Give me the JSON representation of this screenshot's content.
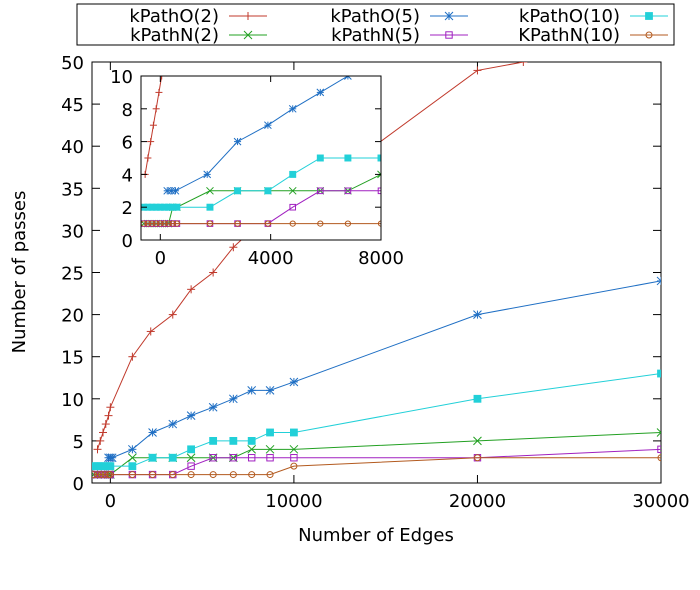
{
  "chart_data": [
    {
      "type": "line",
      "title": "",
      "xlabel": "Number of Edges",
      "ylabel": "Number of passes",
      "xlim": [
        -1000,
        30000
      ],
      "ylim": [
        0,
        50
      ],
      "xticks": [
        0,
        10000,
        20000,
        30000
      ],
      "yticks": [
        0,
        5,
        10,
        15,
        20,
        25,
        30,
        35,
        40,
        45,
        50
      ],
      "grid": false,
      "legend_position": "top, outside plot (3 columns)",
      "series": [
        {
          "name": "kPathO(2)",
          "color": "#c0392b",
          "marker": "plus",
          "x": [
            -700,
            -550,
            -400,
            -250,
            -100,
            0,
            1200,
            2200,
            3400,
            4400,
            5600,
            6700,
            7700,
            8700,
            10000,
            20000,
            22500
          ],
          "y": [
            4,
            5,
            6,
            7,
            8,
            9,
            15,
            18,
            20,
            23,
            25,
            28,
            30,
            31,
            33,
            49,
            50
          ]
        },
        {
          "name": "kPathN(2)",
          "color": "#22a022",
          "marker": "x",
          "x": [
            -900,
            -700,
            -500,
            -300,
            -100,
            0,
            1200,
            2300,
            3400,
            4400,
            5600,
            6700,
            7700,
            8700,
            10000,
            20000,
            30000
          ],
          "y": [
            1,
            1,
            1,
            1,
            1,
            1,
            3,
            3,
            3,
            3,
            3,
            3,
            4,
            4,
            4,
            5,
            6
          ]
        },
        {
          "name": "kPathO(5)",
          "color": "#1f6fc4",
          "marker": "star",
          "x": [
            -100,
            0,
            100,
            1200,
            2300,
            3400,
            4400,
            5600,
            6700,
            7700,
            8700,
            10000,
            20000,
            30000
          ],
          "y": [
            3,
            3,
            3,
            4,
            6,
            7,
            8,
            9,
            10,
            11,
            11,
            12,
            20,
            24
          ]
        },
        {
          "name": "kPathN(5)",
          "color": "#a020c0",
          "marker": "square-open",
          "x": [
            -900,
            -700,
            -500,
            -300,
            -100,
            0,
            1200,
            2300,
            3400,
            4400,
            5600,
            6700,
            7700,
            8700,
            10000,
            20000,
            30000
          ],
          "y": [
            1,
            1,
            1,
            1,
            1,
            1,
            1,
            1,
            1,
            2,
            3,
            3,
            3,
            3,
            3,
            3,
            4
          ]
        },
        {
          "name": "kPathO(10)",
          "color": "#22d0d8",
          "marker": "square-filled",
          "x": [
            -900,
            -700,
            -500,
            -300,
            -100,
            0,
            1200,
            2300,
            3400,
            4400,
            5600,
            6700,
            7700,
            8700,
            10000,
            20000,
            30000
          ],
          "y": [
            2,
            2,
            2,
            2,
            2,
            2,
            2,
            3,
            3,
            4,
            5,
            5,
            5,
            6,
            6,
            10,
            13
          ]
        },
        {
          "name": "KPathN(10)",
          "color": "#b35a1f",
          "marker": "circle-open",
          "x": [
            -900,
            -700,
            -500,
            -300,
            -100,
            0,
            1200,
            2300,
            3400,
            4400,
            5600,
            6700,
            7700,
            8700,
            10000,
            20000,
            30000
          ],
          "y": [
            1,
            1,
            1,
            1,
            1,
            1,
            1,
            1,
            1,
            1,
            1,
            1,
            1,
            1,
            2,
            3,
            3
          ]
        }
      ]
    },
    {
      "type": "line",
      "title": "",
      "xlabel": "",
      "ylabel": "",
      "xlim": [
        -700,
        8000
      ],
      "ylim": [
        0,
        10
      ],
      "xticks": [
        0,
        4000,
        8000
      ],
      "yticks": [
        0,
        2,
        4,
        6,
        8,
        10
      ],
      "grid": false,
      "legend_position": "none",
      "series": [
        {
          "color": "#c0392b",
          "marker": "plus",
          "x": [
            -550,
            -450,
            -350,
            -250,
            -150,
            -50,
            50,
            150
          ],
          "y": [
            4,
            5,
            6,
            7,
            8,
            9,
            10,
            11
          ]
        },
        {
          "color": "#22a022",
          "marker": "x",
          "x": [
            -600,
            -450,
            -300,
            -150,
            0,
            150,
            300,
            450,
            600,
            1800,
            2800,
            3900,
            4800,
            5800,
            6800,
            8000
          ],
          "y": [
            1,
            1,
            1,
            1,
            1,
            1,
            1,
            2,
            2,
            3,
            3,
            3,
            3,
            3,
            3,
            4
          ]
        },
        {
          "color": "#1f6fc4",
          "marker": "star",
          "x": [
            250,
            400,
            550,
            1700,
            2800,
            3900,
            4800,
            5800,
            6800
          ],
          "y": [
            3,
            3,
            3,
            4,
            6,
            7,
            8,
            9,
            10
          ]
        },
        {
          "color": "#a020c0",
          "marker": "square-open",
          "x": [
            -600,
            -450,
            -300,
            -150,
            0,
            150,
            300,
            450,
            600,
            1800,
            2800,
            3900,
            4800,
            5800,
            6800,
            8000
          ],
          "y": [
            1,
            1,
            1,
            1,
            1,
            1,
            1,
            1,
            1,
            1,
            1,
            1,
            2,
            3,
            3,
            3
          ]
        },
        {
          "color": "#22d0d8",
          "marker": "square-filled",
          "x": [
            -600,
            -450,
            -300,
            -150,
            0,
            150,
            300,
            450,
            600,
            1800,
            2800,
            3900,
            4800,
            5800,
            6800,
            8000
          ],
          "y": [
            2,
            2,
            2,
            2,
            2,
            2,
            2,
            2,
            2,
            2,
            3,
            3,
            4,
            5,
            5,
            5
          ]
        },
        {
          "color": "#b35a1f",
          "marker": "circle-open",
          "x": [
            -600,
            -450,
            -300,
            -150,
            0,
            150,
            300,
            450,
            600,
            1800,
            2800,
            3900,
            4800,
            5800,
            6800,
            8000
          ],
          "y": [
            1,
            1,
            1,
            1,
            1,
            1,
            1,
            1,
            1,
            1,
            1,
            1,
            1,
            1,
            1,
            1
          ]
        }
      ]
    }
  ]
}
